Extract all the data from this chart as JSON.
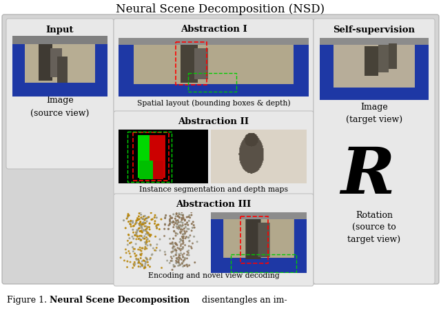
{
  "title": "Neural Scene Decomposition (NSD)",
  "bg_color": "#ffffff",
  "main_panel_color": "#d8d8d8",
  "sub_panel_color": "#e8e8e8",
  "fig_width": 6.4,
  "fig_height": 4.57,
  "font_family": "DejaVu Serif",
  "left_panel": {
    "label": "Input",
    "sublabel": "Image\n(source view)"
  },
  "center_panel": {
    "abs1_label": "Abstraction I",
    "abs1_sublabel": "Spatial layout (bounding boxes & depth)",
    "abs2_label": "Abstraction II",
    "abs2_sublabel": "Instance segmentation and depth maps",
    "abs3_label": "Abstraction III",
    "abs3_sublabel": "Encoding and novel view decoding"
  },
  "right_panel": {
    "label": "Self-supervision",
    "img_sublabel": "Image\n(target view)",
    "rot_char": "R",
    "rot_sublabel": "Rotation\n(source to\ntarget view)"
  },
  "caption_normal": "Figure 1.  ",
  "caption_bold": "Neural Scene Decomposition",
  "caption_rest": "  disentangles an im-"
}
